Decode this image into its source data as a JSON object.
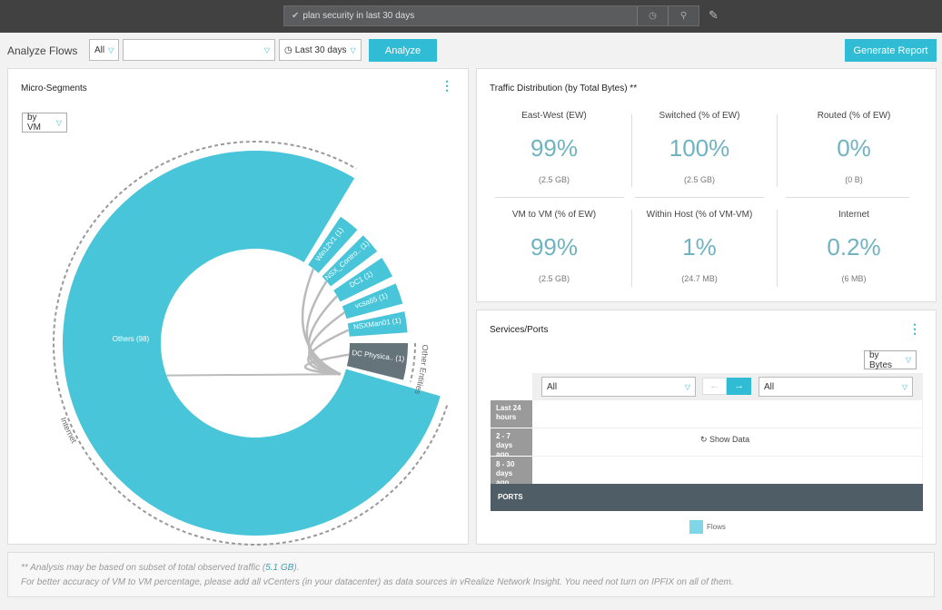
{
  "topbar": {
    "search_value": "plan security in last 30 days"
  },
  "toolbar": {
    "label": "Analyze Flows",
    "scope": "All",
    "entity": "",
    "time": "Last 30 days",
    "analyze": "Analyze",
    "report": "Generate Report"
  },
  "micro": {
    "title": "Micro-Segments",
    "group_by": "by VM",
    "ring_labels": {
      "internet": "Internet",
      "other": "Other Entities"
    }
  },
  "chart_data": {
    "type": "pie",
    "title": "Micro-Segments",
    "segments": [
      {
        "label": "Others (98)",
        "group": "Internet",
        "color": "#48c5d8"
      },
      {
        "label": "Win12V1 (1)",
        "group": "Internet",
        "color": "#48c5d8"
      },
      {
        "label": "NSX_Contro.. (1)",
        "group": "Internet",
        "color": "#48c5d8"
      },
      {
        "label": "DC1 (1)",
        "group": "Internet",
        "color": "#48c5d8"
      },
      {
        "label": "vcsa65 (1)",
        "group": "Internet",
        "color": "#48c5d8"
      },
      {
        "label": "NSXMan01 (1)",
        "group": "Internet",
        "color": "#48c5d8"
      },
      {
        "label": "DC Physica.. (1)",
        "group": "Other Entities",
        "color": "#65737a"
      }
    ]
  },
  "traffic": {
    "title": "Traffic Distribution (by Total Bytes) **",
    "stats": [
      {
        "title": "East-West (EW)",
        "value": "99%",
        "sub": "(2.5 GB)"
      },
      {
        "title": "Switched (% of EW)",
        "value": "100%",
        "sub": "(2.5 GB)"
      },
      {
        "title": "Routed (% of EW)",
        "value": "0%",
        "sub": "(0 B)"
      },
      {
        "title": "VM to VM (% of EW)",
        "value": "99%",
        "sub": "(2.5 GB)"
      },
      {
        "title": "Within Host (% of VM-VM)",
        "value": "1%",
        "sub": "(24.7 MB)"
      },
      {
        "title": "Internet",
        "value": "0.2%",
        "sub": "(6 MB)"
      }
    ]
  },
  "services": {
    "title": "Services/Ports",
    "metric": "by Bytes",
    "left_filter": "All",
    "right_filter": "All",
    "rows": [
      "Last 24 hours",
      "2 - 7 days ago",
      "8 - 30 days ago"
    ],
    "show_data": "Show Data",
    "ports": "PORTS",
    "legend": "Flows"
  },
  "footer": {
    "line1_pre": "** Analysis may be based on subset of total observed traffic (",
    "link": "5.1 GB",
    "line1_post": ").",
    "line2": "For better accuracy of VM to VM percentage, please add all vCenters (in your datacenter) as data sources in vRealize Network Insight. You need not turn on IPFIX on all of them."
  }
}
